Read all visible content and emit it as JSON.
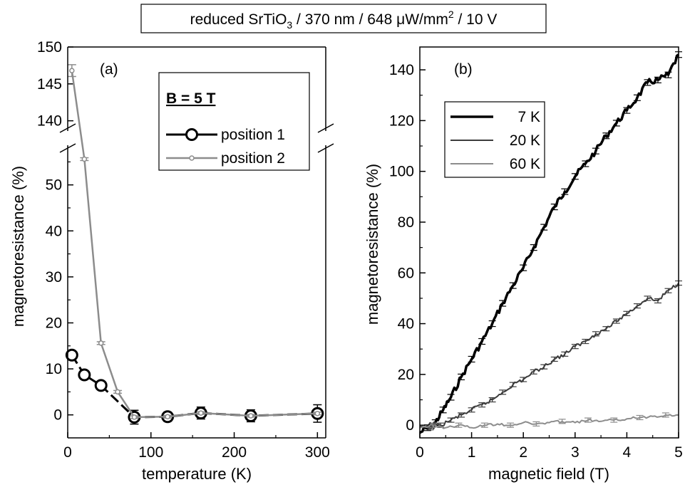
{
  "header": {
    "text_before": "reduced SrTiO",
    "subscript": "3",
    "text_middle": " / 370 nm / 648 μW/mm",
    "superscript": "2",
    "text_after": " / 10 V"
  },
  "chart_data": [
    {
      "type": "line",
      "panel_label": "(a)",
      "xlabel": "temperature (K)",
      "ylabel": "magnetoresistance (%)",
      "xlim": [
        0,
        310
      ],
      "ylim_lower": [
        -5,
        58
      ],
      "ylim_upper": [
        139,
        150
      ],
      "axis_break": true,
      "x_ticks": [
        0,
        100,
        200,
        300
      ],
      "y_ticks_lower": [
        0,
        10,
        20,
        30,
        40,
        50
      ],
      "y_ticks_upper": [
        140,
        145,
        150
      ],
      "legend": {
        "title": "B = 5 T",
        "placement": "top-right"
      },
      "series": [
        {
          "name": "position 1",
          "color": "#000000",
          "marker": "open-circle",
          "line_style": "dashed-solid",
          "x": [
            5,
            20,
            40,
            80,
            120,
            160,
            220,
            300
          ],
          "y": [
            13,
            8.7,
            6.4,
            -0.5,
            -0.4,
            0.4,
            -0.2,
            0.3
          ],
          "err": [
            0.8,
            0.8,
            0.8,
            1.5,
            1.0,
            1.3,
            1.3,
            1.9
          ]
        },
        {
          "name": "position 2",
          "color": "#8c8c8c",
          "marker": "small-open-circle",
          "line_style": "solid",
          "x": [
            5,
            20,
            40,
            60,
            80,
            120,
            160,
            220,
            300
          ],
          "y": [
            146.8,
            55.6,
            15.6,
            5.0,
            -0.5,
            -0.4,
            0.4,
            -0.2,
            0.3
          ],
          "err": [
            0.8,
            0.3,
            0.3,
            0.3,
            0.3,
            0.3,
            0.3,
            0.3,
            0.3
          ]
        }
      ]
    },
    {
      "type": "line",
      "panel_label": "(b)",
      "xlabel": "magnetic field (T)",
      "ylabel": "magnetoresistance (%)",
      "xlim": [
        0,
        5
      ],
      "ylim": [
        -5,
        149
      ],
      "x_ticks": [
        0,
        1,
        2,
        3,
        4,
        5
      ],
      "y_ticks": [
        0,
        20,
        40,
        60,
        80,
        100,
        120,
        140
      ],
      "legend": {
        "placement": "top-left"
      },
      "series": [
        {
          "name": "7 K",
          "color": "#000000",
          "stroke": "thick",
          "x": [
            0,
            0.15,
            0.3,
            0.45,
            0.6,
            0.8,
            1.0,
            1.2,
            1.4,
            1.6,
            1.8,
            2.0,
            2.2,
            2.4,
            2.6,
            2.8,
            3.0,
            3.2,
            3.4,
            3.6,
            3.8,
            4.0,
            4.2,
            4.4,
            4.6,
            4.8,
            5.0
          ],
          "y": [
            -3,
            -1,
            1,
            6,
            11,
            19,
            26,
            33,
            40,
            48,
            55,
            62,
            70,
            78,
            86,
            92,
            98,
            103,
            108,
            114,
            119,
            124,
            129,
            135,
            136,
            138,
            146
          ]
        },
        {
          "name": "20 K",
          "color": "#3c3c3c",
          "stroke": "medium",
          "x": [
            0,
            0.2,
            0.4,
            0.6,
            0.8,
            1.0,
            1.2,
            1.4,
            1.6,
            1.8,
            2.0,
            2.2,
            2.4,
            2.6,
            2.8,
            3.0,
            3.2,
            3.4,
            3.6,
            3.8,
            4.0,
            4.2,
            4.4,
            4.6,
            4.8,
            5.0
          ],
          "y": [
            -1,
            -1,
            0,
            2,
            4,
            6,
            8,
            10,
            13,
            16,
            18,
            21,
            23,
            26,
            28,
            31,
            33,
            36,
            38,
            41,
            44,
            47,
            50,
            49,
            53,
            56
          ]
        },
        {
          "name": "60 K",
          "color": "#8c8c8c",
          "stroke": "medium",
          "x": [
            0,
            0.25,
            0.5,
            0.75,
            1.0,
            1.25,
            1.5,
            1.75,
            2.0,
            2.25,
            2.5,
            2.75,
            3.0,
            3.25,
            3.5,
            3.75,
            4.0,
            4.25,
            4.5,
            4.75,
            5.0
          ],
          "y": [
            -1,
            0,
            -1,
            0,
            -1,
            0,
            0.5,
            0,
            1,
            0.5,
            1,
            1.5,
            1,
            2,
            1.5,
            2,
            2.5,
            3,
            3.5,
            4,
            4
          ]
        }
      ]
    }
  ]
}
